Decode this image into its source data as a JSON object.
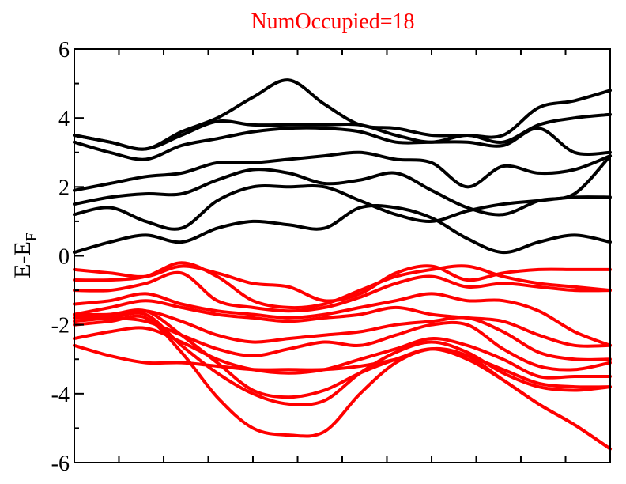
{
  "chart_data": {
    "type": "line",
    "title": "NumOccupied=18",
    "title_color": "#ff0000",
    "ylabel": "E-E",
    "ylabel_subscript": "F",
    "ylim": [
      -6,
      6
    ],
    "yticks": [
      "6",
      "4",
      "2",
      "0",
      "-2",
      "-4",
      "-6"
    ],
    "ytick_values": [
      6,
      4,
      2,
      0,
      -2,
      -4,
      -6
    ],
    "xlim": [
      0,
      1
    ],
    "xticks_minor": [
      0.0833,
      0.1667,
      0.25,
      0.3333,
      0.4167,
      0.5,
      0.5833,
      0.6667,
      0.75,
      0.8333,
      0.9167
    ],
    "grid": false,
    "x": [
      0.0,
      0.0667,
      0.1333,
      0.2,
      0.2667,
      0.3333,
      0.4,
      0.4667,
      0.5333,
      0.6,
      0.6667,
      0.7333,
      0.8,
      0.8667,
      0.9333,
      1.0
    ],
    "unoccupied_color": "#000000",
    "occupied_color": "#ff0000",
    "series": [
      {
        "group": "unoccupied",
        "values": [
          0.1,
          0.4,
          0.6,
          0.4,
          0.8,
          1.0,
          0.9,
          0.8,
          1.4,
          1.4,
          1.1,
          0.5,
          0.1,
          0.4,
          0.6,
          0.4
        ]
      },
      {
        "group": "unoccupied",
        "values": [
          1.2,
          1.4,
          1.0,
          0.8,
          1.6,
          2.0,
          2.0,
          2.0,
          1.6,
          1.2,
          1.0,
          1.3,
          1.5,
          1.6,
          1.7,
          1.7
        ]
      },
      {
        "group": "unoccupied",
        "values": [
          1.5,
          1.7,
          1.8,
          1.8,
          2.2,
          2.5,
          2.4,
          2.1,
          2.2,
          2.4,
          1.9,
          1.4,
          1.2,
          1.6,
          1.8,
          2.9
        ]
      },
      {
        "group": "unoccupied",
        "values": [
          1.9,
          2.1,
          2.3,
          2.4,
          2.7,
          2.7,
          2.8,
          2.9,
          3.0,
          2.8,
          2.7,
          2.0,
          2.6,
          2.4,
          2.5,
          2.9
        ]
      },
      {
        "group": "unoccupied",
        "values": [
          3.3,
          3.0,
          2.8,
          3.2,
          3.4,
          3.6,
          3.7,
          3.7,
          3.6,
          3.3,
          3.3,
          3.3,
          3.2,
          3.7,
          3.0,
          3.0
        ]
      },
      {
        "group": "unoccupied",
        "values": [
          3.5,
          3.3,
          3.1,
          3.5,
          3.9,
          3.8,
          3.8,
          3.8,
          3.8,
          3.5,
          3.3,
          3.5,
          3.3,
          3.8,
          4.0,
          4.1
        ]
      },
      {
        "group": "unoccupied",
        "values": [
          3.5,
          3.3,
          3.1,
          3.6,
          4.0,
          4.6,
          5.1,
          4.4,
          3.8,
          3.7,
          3.5,
          3.5,
          3.5,
          4.3,
          4.5,
          4.8
        ]
      },
      {
        "group": "occupied",
        "values": [
          -0.4,
          -0.5,
          -0.6,
          -0.3,
          -0.5,
          -0.8,
          -0.9,
          -1.3,
          -1.1,
          -0.5,
          -0.3,
          -0.7,
          -0.5,
          -0.4,
          -0.4,
          -0.4
        ]
      },
      {
        "group": "occupied",
        "values": [
          -0.7,
          -0.7,
          -0.6,
          -0.2,
          -0.6,
          -1.3,
          -1.5,
          -1.4,
          -1.0,
          -0.6,
          -0.4,
          -0.3,
          -0.6,
          -0.8,
          -0.9,
          -1.0
        ]
      },
      {
        "group": "occupied",
        "values": [
          -1.0,
          -1.0,
          -0.8,
          -0.5,
          -1.3,
          -1.5,
          -1.6,
          -1.5,
          -1.2,
          -0.8,
          -0.6,
          -0.9,
          -0.8,
          -0.9,
          -1.0,
          -1.0
        ]
      },
      {
        "group": "occupied",
        "values": [
          -1.4,
          -1.3,
          -1.1,
          -1.4,
          -1.6,
          -1.7,
          -1.8,
          -1.7,
          -1.5,
          -1.3,
          -1.1,
          -1.3,
          -1.3,
          -1.6,
          -2.2,
          -2.6
        ]
      },
      {
        "group": "occupied",
        "values": [
          -1.7,
          -1.5,
          -1.3,
          -1.5,
          -1.7,
          -1.8,
          -1.9,
          -1.8,
          -1.7,
          -1.5,
          -1.7,
          -1.8,
          -1.9,
          -2.3,
          -2.6,
          -2.6
        ]
      },
      {
        "group": "occupied",
        "values": [
          -1.8,
          -1.7,
          -1.6,
          -1.9,
          -2.3,
          -2.5,
          -2.4,
          -2.3,
          -2.2,
          -2.0,
          -1.9,
          -1.8,
          -2.2,
          -2.8,
          -3.0,
          -3.0
        ]
      },
      {
        "group": "occupied",
        "values": [
          -1.8,
          -1.8,
          -1.9,
          -2.3,
          -2.7,
          -2.9,
          -2.7,
          -2.5,
          -2.6,
          -2.3,
          -2.0,
          -2.0,
          -2.7,
          -3.2,
          -3.3,
          -3.1
        ]
      },
      {
        "group": "occupied",
        "values": [
          -2.4,
          -2.2,
          -2.1,
          -2.5,
          -3.0,
          -3.3,
          -3.4,
          -3.3,
          -3.0,
          -2.7,
          -2.4,
          -2.6,
          -3.0,
          -3.5,
          -3.5,
          -3.5
        ]
      },
      {
        "group": "occupied",
        "values": [
          -2.6,
          -2.9,
          -3.1,
          -3.1,
          -3.2,
          -3.3,
          -3.3,
          -3.3,
          -3.2,
          -3.0,
          -2.7,
          -2.9,
          -3.3,
          -3.7,
          -3.8,
          -3.8
        ]
      },
      {
        "group": "occupied",
        "values": [
          -1.9,
          -1.8,
          -1.7,
          -2.6,
          -3.4,
          -4.0,
          -4.3,
          -4.2,
          -3.4,
          -2.8,
          -2.5,
          -2.8,
          -3.4,
          -3.8,
          -3.9,
          -3.8
        ]
      },
      {
        "group": "occupied",
        "values": [
          -1.7,
          -1.7,
          -1.6,
          -2.3,
          -3.1,
          -3.9,
          -4.1,
          -3.9,
          -3.4,
          -3.0,
          -2.7,
          -3.0,
          -3.6,
          -4.3,
          -4.9,
          -5.6
        ]
      },
      {
        "group": "occupied",
        "values": [
          -2.0,
          -1.9,
          -1.8,
          -2.8,
          -4.1,
          -5.0,
          -5.2,
          -5.1,
          -4.0,
          -3.1,
          -2.7,
          -2.9,
          -3.6,
          -4.3,
          -4.9,
          -5.6
        ]
      }
    ]
  }
}
